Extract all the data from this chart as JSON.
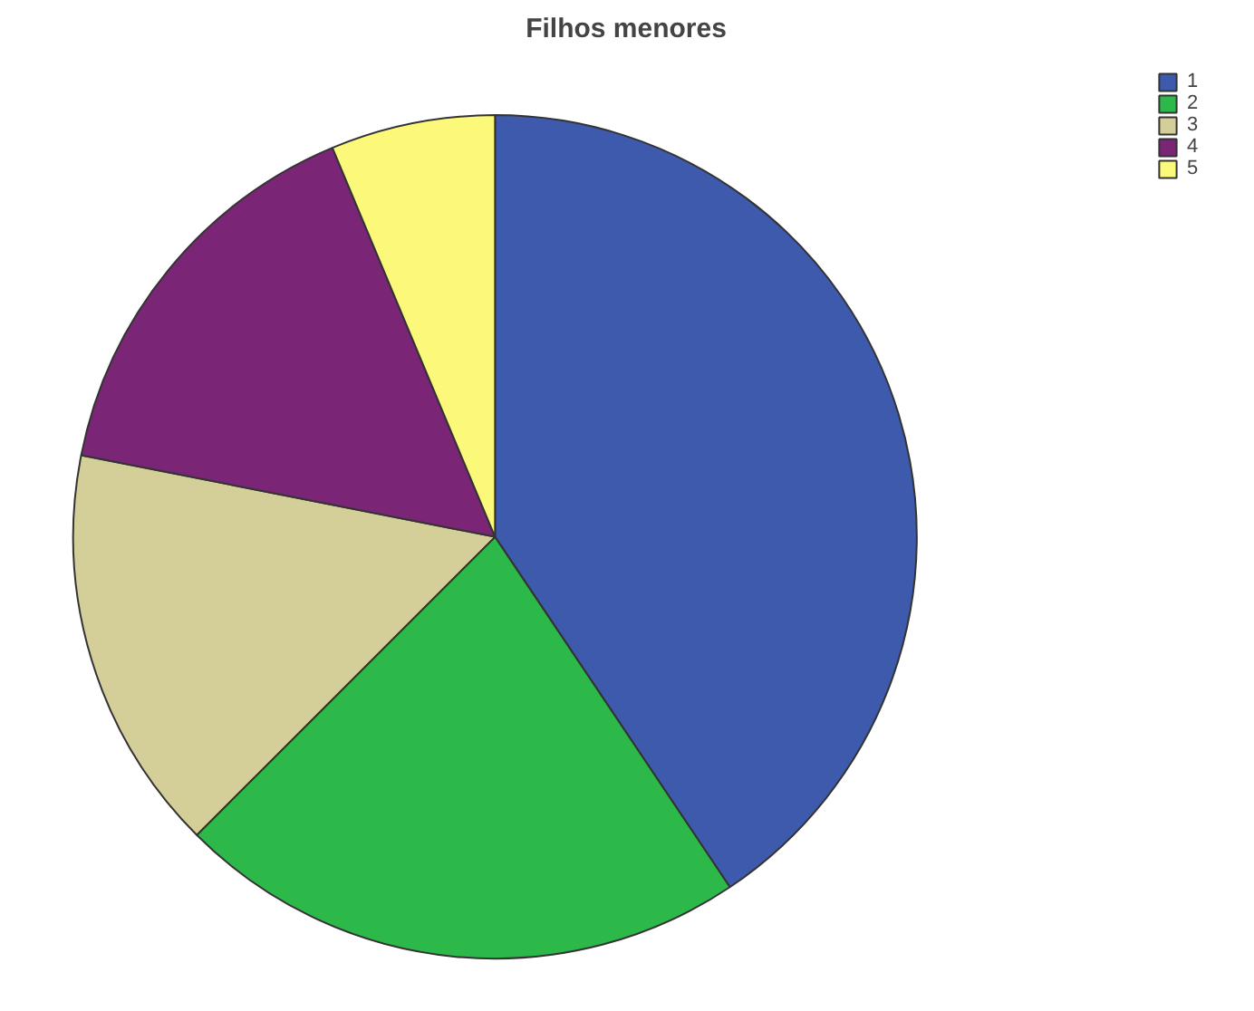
{
  "chart_data": {
    "type": "pie",
    "title": "Filhos menores",
    "categories": [
      "1",
      "2",
      "3",
      "4",
      "5"
    ],
    "values": [
      40.6,
      21.9,
      15.6,
      15.6,
      6.3
    ],
    "colors": [
      "#3d5aad",
      "#2db84a",
      "#d4cf98",
      "#7b2576",
      "#fbf87a"
    ],
    "legend": "top right"
  }
}
